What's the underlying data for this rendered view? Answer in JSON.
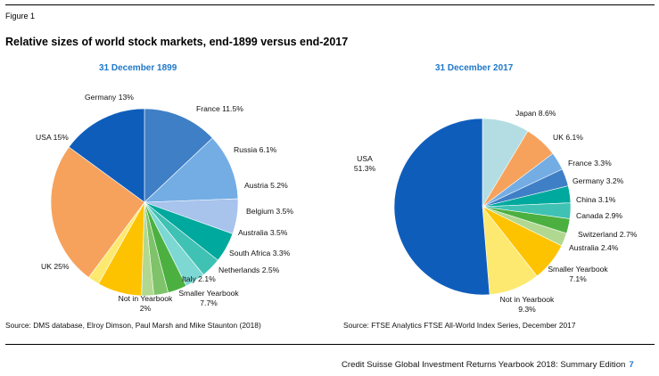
{
  "figure_label": "Figure 1",
  "title": "Relative sizes of world stock markets, end-1899 versus end-2017",
  "chart_data": [
    {
      "type": "pie",
      "title": "31 December 1899",
      "slices": [
        {
          "label": "Germany 13%",
          "value": 13.0,
          "color": "#3f7fc6"
        },
        {
          "label": "France 11.5%",
          "value": 11.5,
          "color": "#73ade4"
        },
        {
          "label": "Russia 6.1%",
          "value": 6.1,
          "color": "#a8c3ec"
        },
        {
          "label": "Austria 5.2%",
          "value": 5.2,
          "color": "#00a99d"
        },
        {
          "label": "Belgium 3.5%",
          "value": 3.5,
          "color": "#3fc2b4"
        },
        {
          "label": "Australia 3.5%",
          "value": 3.5,
          "color": "#7dd8d3"
        },
        {
          "label": "South Africa 3.3%",
          "value": 3.3,
          "color": "#4cb040"
        },
        {
          "label": "Netherlands 2.5%",
          "value": 2.5,
          "color": "#7ec36a"
        },
        {
          "label": "Italy 2.1%",
          "value": 2.1,
          "color": "#b1d890"
        },
        {
          "label": "Smaller Yearbook\n7.7%",
          "value": 7.7,
          "color": "#fec300"
        },
        {
          "label": "Not in Yearbook\n2%",
          "value": 2.0,
          "color": "#fde970"
        },
        {
          "label": "UK 25%",
          "value": 25.0,
          "color": "#f6a25c"
        },
        {
          "label": "USA 15%",
          "value": 15.0,
          "color": "#0f5dbb"
        }
      ],
      "source": "Source:  DMS database, Elroy Dimson, Paul Marsh and Mike Staunton (2018)"
    },
    {
      "type": "pie",
      "title": "31 December 2017",
      "slices": [
        {
          "label": "Japan  8.6%",
          "value": 8.6,
          "color": "#b3dde3"
        },
        {
          "label": "UK 6.1%",
          "value": 6.1,
          "color": "#f6a25c"
        },
        {
          "label": "France 3.3%",
          "value": 3.3,
          "color": "#73ade4"
        },
        {
          "label": "Germany  3.2%",
          "value": 3.2,
          "color": "#3f7fc6"
        },
        {
          "label": "China  3.1%",
          "value": 3.1,
          "color": "#00a99d"
        },
        {
          "label": "Canada  2.9%",
          "value": 2.9,
          "color": "#3fc2b4"
        },
        {
          "label": "Switzerland  2.7%",
          "value": 2.7,
          "color": "#4cb040"
        },
        {
          "label": "Australia  2.4%",
          "value": 2.4,
          "color": "#b1d890"
        },
        {
          "label": "Smaller  Yearbook\n7.1%",
          "value": 7.1,
          "color": "#fec300"
        },
        {
          "label": "Not in Yearbook\n9.3%",
          "value": 9.3,
          "color": "#fde970"
        },
        {
          "label": "USA\n51.3%",
          "value": 51.3,
          "color": "#0f5dbb"
        }
      ],
      "source": "Source:  FTSE Analytics FTSE All-World Index Series, December 2017"
    }
  ],
  "footer": {
    "text": "Credit Suisse Global Investment Returns Yearbook 2018: Summary Edition",
    "page": "7"
  }
}
